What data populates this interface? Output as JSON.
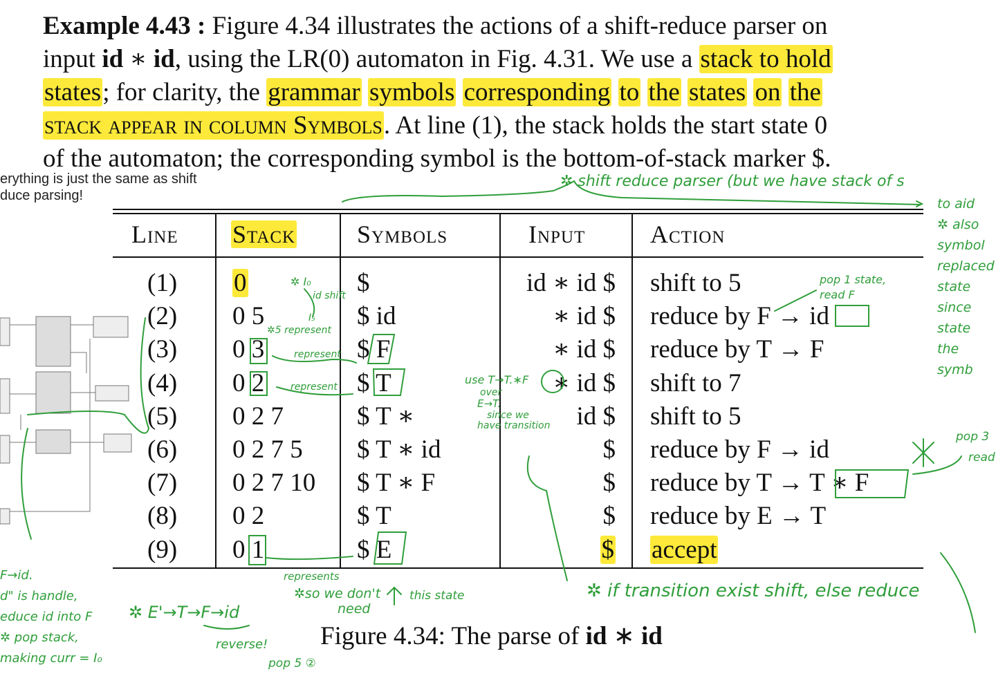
{
  "paragraph": {
    "example_label": "Example 4.43 :",
    "l1_a": " Figure 4.34 illustrates the actions of a shift-reduce parser on",
    "l2_a": "input ",
    "l2_id1": "id",
    "l2_op": " ∗ ",
    "l2_id2": "id",
    "l2_b": ", using the LR(0) automaton in Fig. 4.31. We use a ",
    "l2_hl": "stack to hold",
    "l3_hl1": "states",
    "l3_a": "; for clarity, the ",
    "l3_hl2": "grammar",
    "l3_hl3": "symbols",
    "l3_hl4": "corresponding",
    "l3_hl5": "to",
    "l3_hl6": "the",
    "l3_hl7": "states",
    "l3_hl8": "on",
    "l3_hl9": "the",
    "l4_hl": "stack appear in column Symbols",
    "l4_a": ". At line (1), the stack holds the start state 0",
    "l5": "of the automaton; the corresponding symbol is the bottom-of-stack marker $."
  },
  "left_fragment": {
    "line1": "erything is just the same as shift",
    "line2": "duce parsing!"
  },
  "table": {
    "headers": [
      "Line",
      "Stack",
      "Symbols",
      "Input",
      "Action"
    ],
    "rows": [
      {
        "line": "(1)",
        "stack": "0",
        "symbols": "$",
        "input": "id ∗ id $",
        "action": "shift to 5"
      },
      {
        "line": "(2)",
        "stack": "0 5",
        "symbols": "$ id",
        "input": "∗ id $",
        "action": "reduce by F → id"
      },
      {
        "line": "(3)",
        "stack": "0 3",
        "symbols": "$ F",
        "input": "∗ id $",
        "action": "reduce by T → F"
      },
      {
        "line": "(4)",
        "stack": "0 2",
        "symbols": "$ T",
        "input": "∗ id $",
        "action": "shift to 7"
      },
      {
        "line": "(5)",
        "stack": "0 2 7",
        "symbols": "$ T ∗",
        "input": "id $",
        "action": "shift to 5"
      },
      {
        "line": "(6)",
        "stack": "0 2 7 5",
        "symbols": "$ T ∗ id",
        "input": "$",
        "action": "reduce by F → id"
      },
      {
        "line": "(7)",
        "stack": "0 2 7 10",
        "symbols": "$ T ∗ F",
        "input": "$",
        "action": "reduce by T → T ∗ F"
      },
      {
        "line": "(8)",
        "stack": "0 2",
        "symbols": "$ T",
        "input": "$",
        "action": "reduce by E → T"
      },
      {
        "line": "(9)",
        "stack": "0 1",
        "symbols": "$ E",
        "input": "$",
        "action": "accept"
      }
    ]
  },
  "caption": {
    "prefix": "Figure 4.34: The parse of ",
    "id1": "id",
    "op": " ∗ ",
    "id2": "id"
  },
  "annotations": {
    "top": "✲ shift reduce parser (but we have stack of s",
    "top_right": [
      "to aid",
      "✲ also",
      "symbol",
      "replaced",
      "state",
      "since",
      "state",
      "the",
      "symb"
    ],
    "i0": "✲ I₀",
    "id_shift": "id shift",
    "i5": "I₅",
    "five_represent": "✲5 represent",
    "represent1": "represent",
    "represent2": "represent",
    "pop_state": "pop 1 state,",
    "read_f": "read F",
    "use_t": "use T→T.∗F",
    "over": "over",
    "e_to_t": "E→T.",
    "since_we": "since we",
    "have_transition": "have transition",
    "pop3": "pop 3",
    "read": "read",
    "if_transition": "✲ if transition exist shift, else reduce",
    "represents": "represents",
    "we_dont": "✲so we don't",
    "need": "need",
    "this_state": "this state",
    "derivation": "✲ E'→T→F→id",
    "reverse": "reverse!",
    "pop5": "pop 5 ②",
    "left_notes": [
      "F→id.",
      "d\" is handle,",
      "educe id into F",
      "✲ pop stack,",
      "making curr = I₀"
    ]
  }
}
